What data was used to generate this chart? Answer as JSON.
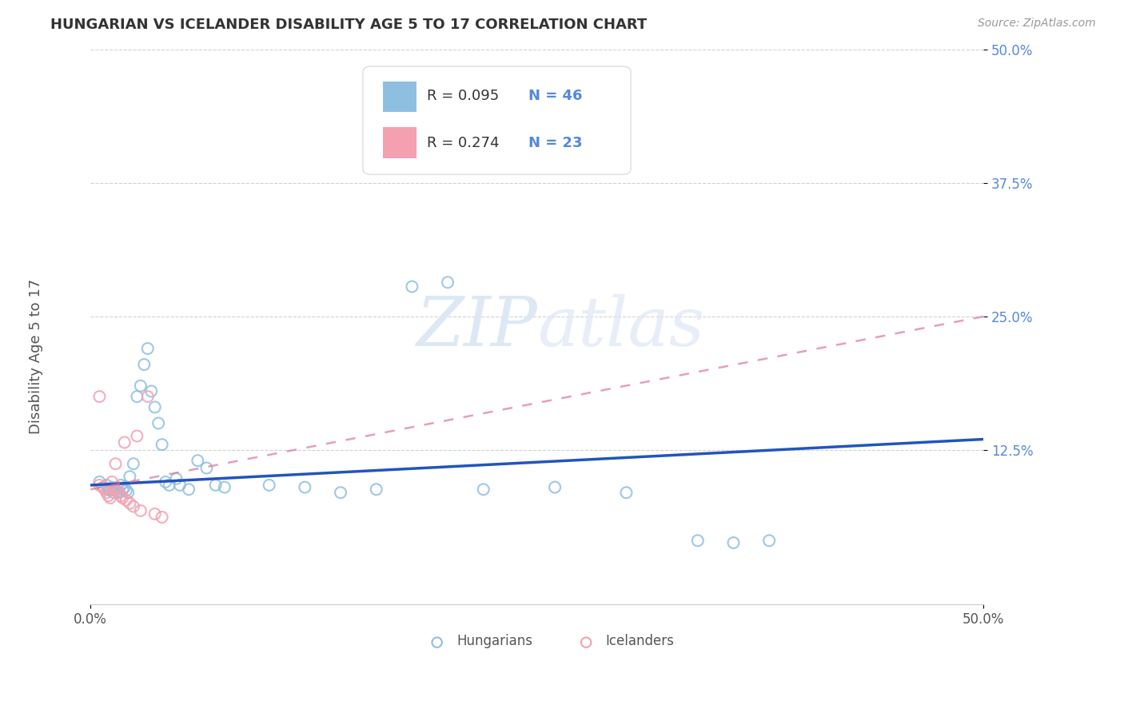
{
  "title": "HUNGARIAN VS ICELANDER DISABILITY AGE 5 TO 17 CORRELATION CHART",
  "source": "Source: ZipAtlas.com",
  "ylabel": "Disability Age 5 to 17",
  "xlim": [
    0.0,
    0.5
  ],
  "ylim": [
    -0.02,
    0.5
  ],
  "xtick_positions": [
    0.0,
    0.5
  ],
  "xtick_labels": [
    "0.0%",
    "50.0%"
  ],
  "ytick_positions": [
    0.125,
    0.25,
    0.375,
    0.5
  ],
  "ytick_labels": [
    "12.5%",
    "25.0%",
    "37.5%",
    "50.0%"
  ],
  "ytick_color": "#5588dd",
  "grid_color": "#cccccc",
  "background_color": "#ffffff",
  "legend_r1": "R = 0.095",
  "legend_n1": "N = 46",
  "legend_r2": "R = 0.274",
  "legend_n2": "N = 23",
  "legend_text_color": "#333333",
  "legend_num_color": "#5588dd",
  "hungarian_color": "#8fbfe0",
  "icelander_color": "#f4a0b0",
  "hungarian_line_color": "#2255bb",
  "icelander_line_color": "#dd7799",
  "watermark_color": "#dde8f5",
  "scatter_hu": [
    [
      0.005,
      0.095
    ],
    [
      0.007,
      0.09
    ],
    [
      0.009,
      0.092
    ],
    [
      0.01,
      0.088
    ],
    [
      0.011,
      0.087
    ],
    [
      0.012,
      0.09
    ],
    [
      0.013,
      0.085
    ],
    [
      0.014,
      0.088
    ],
    [
      0.015,
      0.086
    ],
    [
      0.016,
      0.085
    ],
    [
      0.017,
      0.092
    ],
    [
      0.018,
      0.088
    ],
    [
      0.019,
      0.09
    ],
    [
      0.02,
      0.087
    ],
    [
      0.021,
      0.085
    ],
    [
      0.022,
      0.1
    ],
    [
      0.024,
      0.112
    ],
    [
      0.026,
      0.175
    ],
    [
      0.028,
      0.185
    ],
    [
      0.03,
      0.205
    ],
    [
      0.032,
      0.22
    ],
    [
      0.034,
      0.18
    ],
    [
      0.036,
      0.165
    ],
    [
      0.038,
      0.15
    ],
    [
      0.04,
      0.13
    ],
    [
      0.042,
      0.095
    ],
    [
      0.044,
      0.092
    ],
    [
      0.048,
      0.098
    ],
    [
      0.05,
      0.092
    ],
    [
      0.055,
      0.088
    ],
    [
      0.06,
      0.115
    ],
    [
      0.065,
      0.108
    ],
    [
      0.07,
      0.092
    ],
    [
      0.075,
      0.09
    ],
    [
      0.1,
      0.092
    ],
    [
      0.12,
      0.09
    ],
    [
      0.14,
      0.085
    ],
    [
      0.16,
      0.088
    ],
    [
      0.18,
      0.278
    ],
    [
      0.2,
      0.282
    ],
    [
      0.22,
      0.088
    ],
    [
      0.26,
      0.09
    ],
    [
      0.3,
      0.085
    ],
    [
      0.34,
      0.04
    ],
    [
      0.36,
      0.038
    ],
    [
      0.38,
      0.04
    ]
  ],
  "scatter_ic": [
    [
      0.005,
      0.092
    ],
    [
      0.007,
      0.09
    ],
    [
      0.008,
      0.088
    ],
    [
      0.009,
      0.085
    ],
    [
      0.01,
      0.082
    ],
    [
      0.011,
      0.08
    ],
    [
      0.012,
      0.095
    ],
    [
      0.013,
      0.088
    ],
    [
      0.014,
      0.112
    ],
    [
      0.015,
      0.09
    ],
    [
      0.016,
      0.085
    ],
    [
      0.017,
      0.082
    ],
    [
      0.018,
      0.08
    ],
    [
      0.019,
      0.132
    ],
    [
      0.02,
      0.078
    ],
    [
      0.022,
      0.075
    ],
    [
      0.024,
      0.072
    ],
    [
      0.026,
      0.138
    ],
    [
      0.028,
      0.068
    ],
    [
      0.032,
      0.175
    ],
    [
      0.036,
      0.065
    ],
    [
      0.04,
      0.062
    ],
    [
      0.005,
      0.175
    ]
  ],
  "hu_trendline_x": [
    0.0,
    0.5
  ],
  "hu_trendline_y": [
    0.092,
    0.135
  ],
  "ic_trendline_x": [
    0.0,
    0.5
  ],
  "ic_trendline_y": [
    0.088,
    0.25
  ]
}
